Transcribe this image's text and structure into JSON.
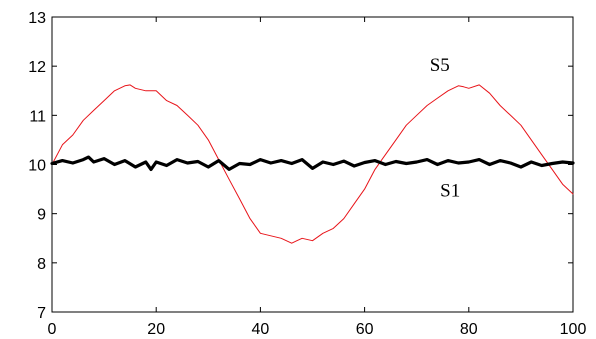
{
  "chart_data": {
    "type": "line",
    "title": "",
    "xlabel": "",
    "ylabel": "",
    "xlim": [
      0,
      100
    ],
    "ylim": [
      7,
      13
    ],
    "x_ticks": [
      "0",
      "20",
      "40",
      "60",
      "80",
      "100"
    ],
    "y_ticks": [
      "7",
      "8",
      "9",
      "10",
      "11",
      "12",
      "13"
    ],
    "grid": false,
    "series": [
      {
        "name": "S5",
        "color": "#e8141a",
        "line_width": "thin",
        "x": [
          0,
          2,
          4,
          6,
          8,
          10,
          12,
          14,
          15,
          16,
          18,
          20,
          22,
          24,
          26,
          28,
          30,
          32,
          34,
          36,
          38,
          40,
          42,
          44,
          46,
          47,
          48,
          50,
          52,
          54,
          56,
          58,
          60,
          62,
          64,
          66,
          68,
          70,
          72,
          74,
          76,
          78,
          79,
          80,
          82,
          84,
          86,
          88,
          90,
          92,
          94,
          96,
          98,
          100
        ],
        "y": [
          10.0,
          10.4,
          10.6,
          10.9,
          11.1,
          11.3,
          11.5,
          11.6,
          11.62,
          11.55,
          11.5,
          11.5,
          11.3,
          11.2,
          11.0,
          10.8,
          10.5,
          10.1,
          9.7,
          9.3,
          8.9,
          8.6,
          8.55,
          8.5,
          8.4,
          8.45,
          8.5,
          8.45,
          8.6,
          8.7,
          8.9,
          9.2,
          9.5,
          9.9,
          10.2,
          10.5,
          10.8,
          11.0,
          11.2,
          11.35,
          11.5,
          11.6,
          11.58,
          11.55,
          11.62,
          11.45,
          11.2,
          11.0,
          10.8,
          10.5,
          10.2,
          9.9,
          9.6,
          9.4
        ]
      },
      {
        "name": "S1",
        "color": "#000000",
        "line_width": "thick",
        "x": [
          0,
          2,
          4,
          6,
          7,
          8,
          10,
          12,
          14,
          16,
          18,
          19,
          20,
          22,
          24,
          26,
          28,
          30,
          32,
          34,
          36,
          38,
          40,
          42,
          44,
          46,
          48,
          50,
          52,
          54,
          56,
          58,
          60,
          62,
          64,
          66,
          68,
          70,
          72,
          74,
          76,
          78,
          80,
          82,
          84,
          86,
          88,
          90,
          92,
          94,
          96,
          98,
          100
        ],
        "y": [
          10.02,
          10.08,
          10.03,
          10.1,
          10.15,
          10.05,
          10.12,
          10.0,
          10.08,
          9.95,
          10.05,
          9.9,
          10.05,
          9.98,
          10.1,
          10.03,
          10.06,
          9.95,
          10.08,
          9.9,
          10.02,
          10.0,
          10.1,
          10.03,
          10.08,
          10.02,
          10.1,
          9.92,
          10.05,
          10.0,
          10.07,
          9.97,
          10.04,
          10.08,
          10.0,
          10.06,
          10.02,
          10.05,
          10.1,
          10.0,
          10.08,
          10.03,
          10.05,
          10.1,
          10.0,
          10.08,
          10.03,
          9.95,
          10.05,
          9.98,
          10.02,
          10.05,
          10.03
        ]
      }
    ],
    "annotations": [
      {
        "text": "S5",
        "x": 72.5,
        "y": 11.9
      },
      {
        "text": "S1",
        "x": 74.5,
        "y": 9.35
      }
    ]
  }
}
